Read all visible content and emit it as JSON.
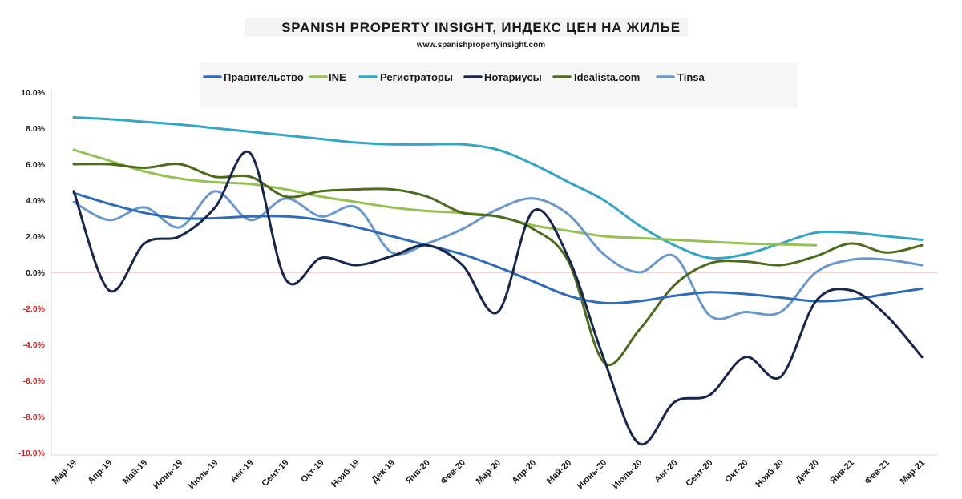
{
  "header": {
    "title": "SPANISH PROPERTY INSIGHT, ИНДЕКС ЦЕН НА ЖИЛЬЕ",
    "subtitle": "www.spanishpropertyinsight.com"
  },
  "chart_data": {
    "type": "line",
    "title": "SPANISH PROPERTY INSIGHT, ИНДЕКС ЦЕН НА ЖИЛЬЕ",
    "subtitle": "www.spanishpropertyinsight.com",
    "xlabel": "",
    "ylabel": "",
    "ylim": [
      -10,
      10
    ],
    "yticks": [
      10,
      8,
      6,
      4,
      2,
      0,
      -2,
      -4,
      -6,
      -8,
      -10
    ],
    "ytick_labels": [
      "10.0%",
      "8.0%",
      "6.0%",
      "4.0%",
      "2.0%",
      "0.0%",
      "-2.0%",
      "-4.0%",
      "-6.0%",
      "-8.0%",
      "-10.0%"
    ],
    "negative_tick_color": "#d81e1e",
    "zero_line_color": "#f4a6a6",
    "grid": false,
    "legend_position": "top",
    "categories": [
      "Мар-19",
      "Апр-19",
      "Май-19",
      "Июнь-19",
      "Июль-19",
      "Авг-19",
      "Сент-19",
      "Окт-19",
      "Нояб-19",
      "Дек-19",
      "Янв-20",
      "Фев-20",
      "Мар-20",
      "Апр-20",
      "Май-20",
      "Июнь-20",
      "Июль-20",
      "Авг-20",
      "Сент-20",
      "Окт-20",
      "Нояб-20",
      "Дек-20",
      "Янв-21",
      "Фев-21",
      "Мар-21"
    ],
    "series": [
      {
        "name": "Правительство",
        "color": "#2e6bb8",
        "values": [
          4.4,
          3.8,
          3.3,
          3.0,
          3.0,
          3.1,
          3.1,
          2.9,
          2.5,
          2.0,
          1.5,
          1.0,
          0.3,
          -0.5,
          -1.3,
          -1.7,
          -1.6,
          -1.3,
          -1.1,
          -1.2,
          -1.4,
          -1.6,
          -1.5,
          -1.2,
          -0.9
        ]
      },
      {
        "name": "INE",
        "color": "#95c153",
        "values": [
          6.8,
          6.2,
          5.6,
          5.2,
          5.0,
          4.9,
          4.6,
          4.2,
          3.9,
          3.6,
          3.4,
          3.3,
          3.1,
          2.6,
          2.3,
          2.0,
          1.9,
          1.8,
          1.7,
          1.6,
          1.55,
          1.5,
          null,
          null,
          null
        ]
      },
      {
        "name": "Регистраторы",
        "color": "#34a5c4",
        "values": [
          8.6,
          8.5,
          8.35,
          8.2,
          8.0,
          7.8,
          7.6,
          7.4,
          7.2,
          7.1,
          7.1,
          7.1,
          6.8,
          6.0,
          5.0,
          4.0,
          2.6,
          1.5,
          0.8,
          1.0,
          1.6,
          2.2,
          2.2,
          2.0,
          1.8
        ]
      },
      {
        "name": "Нотариусы",
        "color": "#17264d",
        "values": [
          4.5,
          -1.0,
          1.6,
          2.0,
          3.6,
          6.6,
          -0.4,
          0.8,
          0.4,
          0.9,
          1.5,
          0.4,
          -2.2,
          3.4,
          0.8,
          -4.8,
          -9.5,
          -7.2,
          -6.8,
          -4.7,
          -5.8,
          -1.6,
          -1.0,
          -2.4,
          -4.7
        ]
      },
      {
        "name": "Idealista.com",
        "color": "#4d6b1d",
        "values": [
          6.0,
          6.0,
          5.8,
          6.0,
          5.3,
          5.3,
          4.2,
          4.5,
          4.6,
          4.6,
          4.2,
          3.3,
          3.1,
          2.4,
          0.6,
          -5.0,
          -3.2,
          -0.7,
          0.5,
          0.6,
          0.4,
          0.9,
          1.6,
          1.1,
          1.5
        ]
      },
      {
        "name": "Tinsa",
        "color": "#6a98cd",
        "values": [
          3.9,
          2.9,
          3.6,
          2.5,
          4.5,
          2.9,
          4.1,
          3.1,
          3.6,
          1.1,
          1.6,
          2.4,
          3.5,
          4.1,
          3.2,
          1.0,
          0.0,
          0.9,
          -2.4,
          -2.2,
          -2.2,
          0.0,
          0.7,
          0.7,
          0.4
        ]
      }
    ]
  }
}
